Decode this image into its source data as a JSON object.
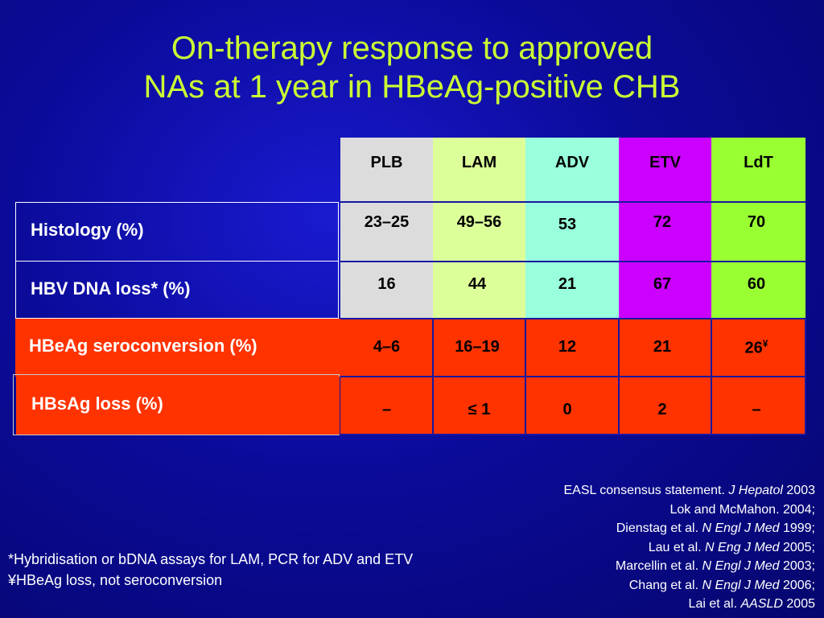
{
  "title": {
    "line1": "On-therapy response to approved",
    "line2": "NAs at 1 year in HBeAg-positive CHB"
  },
  "colors": {
    "background": "#0b0b9a",
    "title": "#ccff33",
    "plb": "#dcdcdc",
    "lam": "#ddff99",
    "adv": "#99ffdd",
    "etv": "#cc00ff",
    "ldt": "#99ff33",
    "highlight_rows": "#ff3300"
  },
  "table": {
    "columns": [
      "PLB",
      "LAM",
      "ADV",
      "ETV",
      "LdT"
    ],
    "rows": [
      {
        "label": "Histology (%)",
        "values": [
          "23–25",
          "49–56",
          "53",
          "72",
          "70"
        ]
      },
      {
        "label": "HBV DNA loss* (%)",
        "values": [
          "16",
          "44",
          "21",
          "67",
          "60"
        ]
      },
      {
        "label": "HBeAg seroconversion (%)",
        "values": [
          "4–6",
          "16–19",
          "12",
          "21",
          "26"
        ],
        "ldt_superscript": "¥"
      },
      {
        "label": "HBsAg loss (%)",
        "values": [
          "–",
          "≤ 1",
          "0",
          "2",
          "–"
        ]
      }
    ]
  },
  "footnotes": {
    "line1": "*Hybridisation or bDNA assays for LAM, PCR for ADV and ETV",
    "line2": "¥HBeAg loss, not seroconversion"
  },
  "references": [
    {
      "pre": "EASL consensus statement. ",
      "journal": "J Hepatol",
      "post": " 2003"
    },
    {
      "pre": "Lok and McMahon. 2004;",
      "journal": "",
      "post": ""
    },
    {
      "pre": "Dienstag et al. ",
      "journal": "N Engl J Med",
      "post": " 1999;"
    },
    {
      "pre": "Lau et al. ",
      "journal": "N Eng J Med",
      "post": " 2005;"
    },
    {
      "pre": "Marcellin et al. ",
      "journal": "N Engl J Med",
      "post": " 2003;"
    },
    {
      "pre": "Chang et al. ",
      "journal": "N Engl J Med",
      "post": " 2006;"
    },
    {
      "pre": "Lai et al. ",
      "journal": "AASLD",
      "post": " 2005"
    }
  ]
}
